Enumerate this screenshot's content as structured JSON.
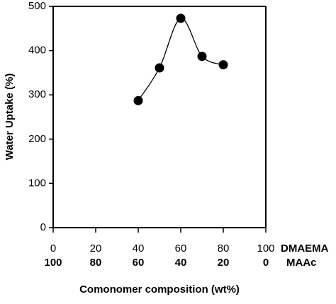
{
  "chart_data": {
    "type": "scatter",
    "y_label": "Water Uptake (%)",
    "x_label": "Comonomer composition (wt%)",
    "x_name": "DMAEMA",
    "x2_name": "MAAc",
    "x": [
      40,
      50,
      60,
      70,
      80
    ],
    "values": [
      287,
      361,
      473,
      387,
      368
    ],
    "smooth_line": true,
    "color": "#000000",
    "xlim": [
      0,
      100
    ],
    "xticks": [
      0,
      20,
      40,
      60,
      80,
      100
    ],
    "x2ticks": [
      100,
      80,
      60,
      40,
      20,
      0
    ],
    "ylim": [
      0,
      500
    ],
    "yticks": [
      0,
      100,
      200,
      300,
      400,
      500
    ]
  }
}
